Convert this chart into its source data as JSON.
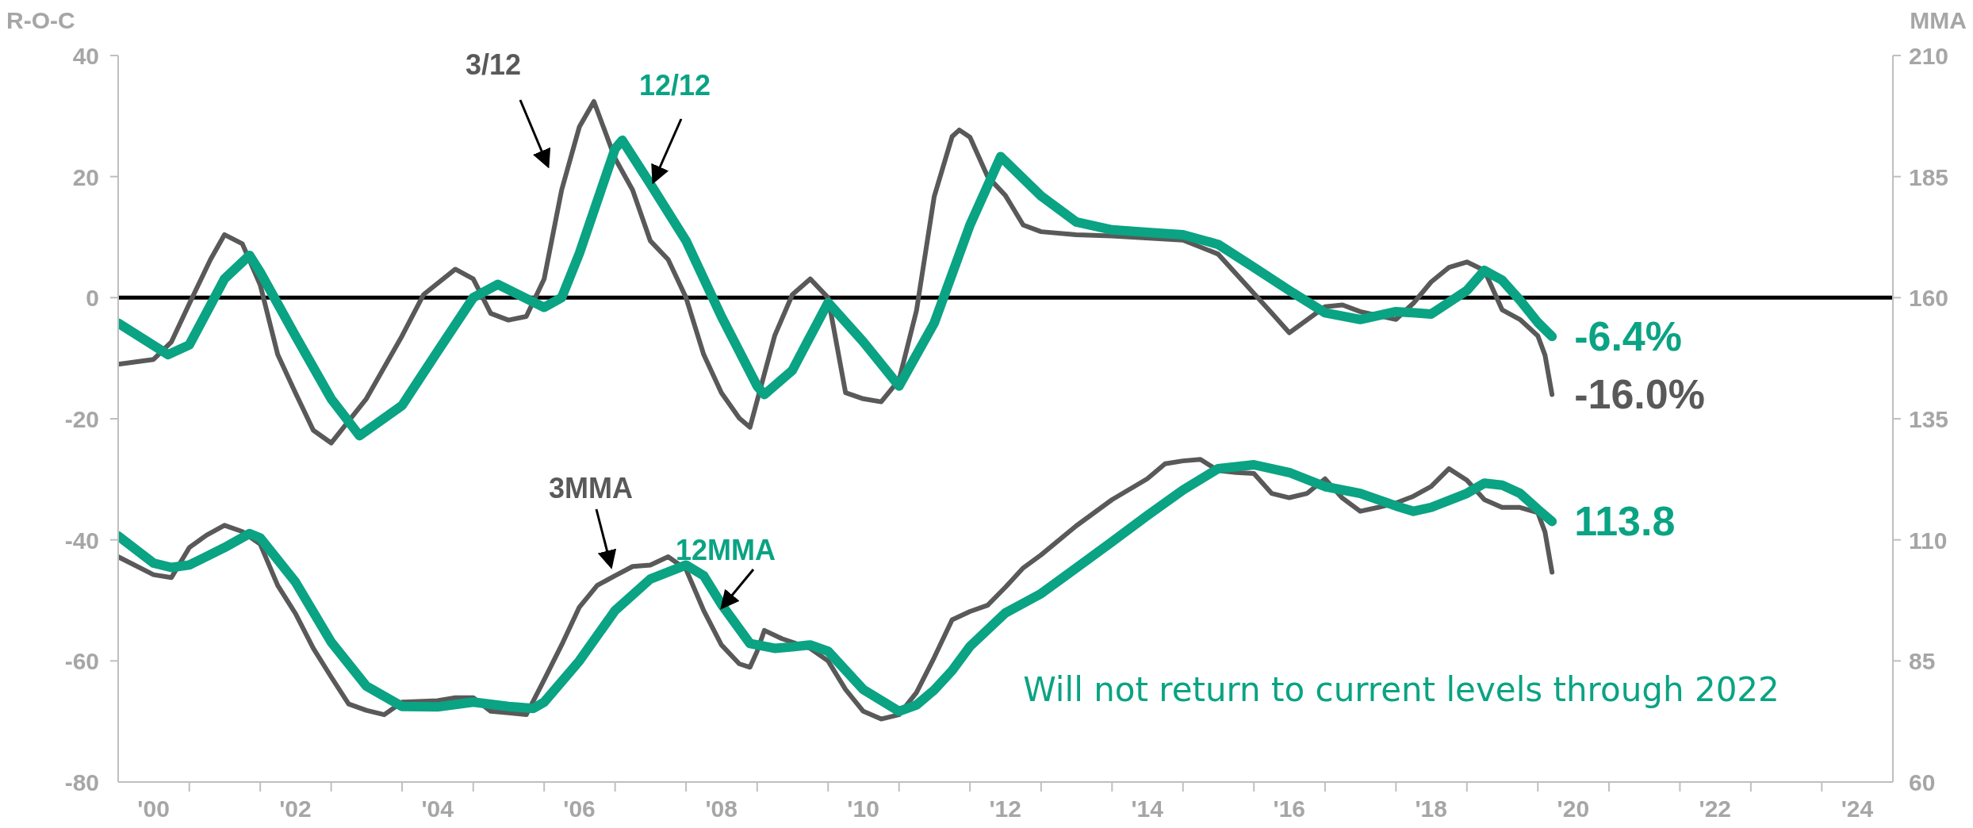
{
  "chart_data": {
    "type": "line",
    "ylabel": "R-O-C",
    "y2label": "MMA",
    "xlim": [
      "2000-01-01",
      "2025-01-01"
    ],
    "xticks": [
      {
        "value": "2000-07-01",
        "label": "'00"
      },
      {
        "value": "2001-01-01",
        "label": null
      },
      {
        "value": "2002-01-01",
        "label": null
      },
      {
        "value": "2002-07-01",
        "label": "'02"
      },
      {
        "value": "2003-01-01",
        "label": null
      },
      {
        "value": "2004-01-01",
        "label": null
      },
      {
        "value": "2004-07-01",
        "label": "'04"
      },
      {
        "value": "2005-01-01",
        "label": null
      },
      {
        "value": "2006-01-01",
        "label": null
      },
      {
        "value": "2006-07-01",
        "label": "'06"
      },
      {
        "value": "2007-01-01",
        "label": null
      },
      {
        "value": "2008-01-01",
        "label": null
      },
      {
        "value": "2008-07-01",
        "label": "'08"
      },
      {
        "value": "2009-01-01",
        "label": null
      },
      {
        "value": "2010-01-01",
        "label": null
      },
      {
        "value": "2010-07-01",
        "label": "'10"
      },
      {
        "value": "2011-01-01",
        "label": null
      },
      {
        "value": "2012-01-01",
        "label": null
      },
      {
        "value": "2012-07-01",
        "label": "'12"
      },
      {
        "value": "2013-01-01",
        "label": null
      },
      {
        "value": "2014-01-01",
        "label": null
      },
      {
        "value": "2014-07-01",
        "label": "'14"
      },
      {
        "value": "2015-01-01",
        "label": null
      },
      {
        "value": "2016-01-01",
        "label": null
      },
      {
        "value": "2016-07-01",
        "label": "'16"
      },
      {
        "value": "2017-01-01",
        "label": null
      },
      {
        "value": "2018-01-01",
        "label": null
      },
      {
        "value": "2018-07-01",
        "label": "'18"
      },
      {
        "value": "2019-01-01",
        "label": null
      },
      {
        "value": "2020-01-01",
        "label": null
      },
      {
        "value": "2020-07-01",
        "label": "'20"
      },
      {
        "value": "2021-01-01",
        "label": null
      },
      {
        "value": "2022-01-01",
        "label": null
      },
      {
        "value": "2022-07-01",
        "label": "'22"
      },
      {
        "value": "2023-01-01",
        "label": null
      },
      {
        "value": "2024-01-01",
        "label": null
      },
      {
        "value": "2024-07-01",
        "label": "'24"
      }
    ],
    "ylim": [
      -80,
      40
    ],
    "yticks": [
      -80,
      -60,
      -40,
      -20,
      0,
      20,
      40
    ],
    "y2lim": [
      60,
      210
    ],
    "y2ticks": [
      60,
      85,
      110,
      135,
      160,
      185,
      210
    ],
    "ref_lines": [
      {
        "axis": "y",
        "value": 0,
        "color": "#000000"
      }
    ],
    "annotations": [
      "Will not return to current levels through 2022"
    ],
    "series": [
      {
        "name": "3/12",
        "color": "#595959",
        "x": [
          "2000-01-01",
          "2000-07-01",
          "2000-10-01",
          "2001-01-01",
          "2001-04-20",
          "2001-07-01",
          "2001-10-01",
          "2002-01-01",
          "2002-04-01",
          "2002-07-01",
          "2002-10-01",
          "2003-01-01",
          "2003-07-01",
          "2004-01-01",
          "2004-04-20",
          "2004-10-01",
          "2005-01-01",
          "2005-04-01",
          "2005-07-01",
          "2005-10-01",
          "2006-01-01",
          "2006-04-01",
          "2006-07-01",
          "2006-09-14",
          "2007-01-01",
          "2007-04-01",
          "2007-07-01",
          "2007-10-01",
          "2008-01-01",
          "2008-04-01",
          "2008-07-01",
          "2008-10-01",
          "2008-11-25",
          "2009-04-01",
          "2009-07-01",
          "2009-10-01",
          "2010-01-01",
          "2010-04-01",
          "2010-07-01",
          "2010-10-01",
          "2011-01-01",
          "2011-04-01",
          "2011-07-01",
          "2011-10-01",
          "2011-11-07",
          "2012-01-01",
          "2012-04-01",
          "2012-07-01",
          "2012-10-01",
          "2013-01-01",
          "2013-07-01",
          "2014-01-01",
          "2015-01-01",
          "2015-07-01",
          "2016-01-01",
          "2016-04-01",
          "2016-07-01",
          "2017-01-01",
          "2017-04-01",
          "2017-07-01",
          "2018-01-01",
          "2018-04-01",
          "2018-07-01",
          "2018-10-01",
          "2019-01-01",
          "2019-04-01",
          "2019-07-01",
          "2019-10-01",
          "2020-01-01",
          "2020-02-07",
          "2020-03-14"
        ],
        "values": [
          -11,
          -10.2,
          -7.3,
          -1,
          6.3,
          10.4,
          8.9,
          2.1,
          -9.4,
          -15.7,
          -21.9,
          -24,
          -16.7,
          -6.3,
          0.5,
          4.7,
          3.1,
          -2.6,
          -3.7,
          -3.1,
          3.1,
          17.8,
          28.2,
          32.4,
          23,
          17.8,
          9.4,
          6.3,
          0,
          -9.4,
          -15.7,
          -19.9,
          -21.4,
          -6.3,
          0.5,
          3.1,
          0,
          -15.7,
          -16.7,
          -17.2,
          -13.6,
          -2.1,
          16.7,
          26.6,
          27.7,
          26.5,
          20,
          16.9,
          12,
          10.9,
          10.4,
          10.2,
          9.5,
          7.2,
          0.7,
          -2.5,
          -5.8,
          -1.5,
          -1.2,
          -2.3,
          -3.6,
          -0.9,
          2.6,
          5,
          5.9,
          4.5,
          -2,
          -3.6,
          -6.3,
          -9.5,
          -16
        ],
        "value_labels": [
          null,
          null,
          null,
          null,
          null,
          null,
          null,
          null,
          null,
          null,
          null,
          null,
          null,
          null,
          null,
          null,
          null,
          null,
          null,
          null,
          null,
          null,
          null,
          null,
          null,
          null,
          null,
          null,
          null,
          null,
          null,
          null,
          null,
          null,
          null,
          null,
          null,
          null,
          null,
          null,
          null,
          null,
          null,
          null,
          null,
          null,
          null,
          null,
          null,
          null,
          null,
          null,
          null,
          null,
          null,
          null,
          null,
          null,
          null,
          null,
          null,
          null,
          null,
          null,
          null,
          null,
          null,
          null,
          null,
          null,
          "-16.0%"
        ]
      },
      {
        "name": "12/12",
        "color": "#0aa383",
        "x": [
          "2000-01-01",
          "2000-09-14",
          "2001-01-01",
          "2001-07-01",
          "2001-11-07",
          "2002-01-01",
          "2002-07-01",
          "2003-01-01",
          "2003-05-27",
          "2004-01-01",
          "2004-07-01",
          "2005-01-01",
          "2005-05-08",
          "2006-01-01",
          "2006-04-01",
          "2006-07-01",
          "2007-01-01",
          "2007-02-07",
          "2007-07-01",
          "2008-01-01",
          "2008-07-01",
          "2009-01-01",
          "2009-02-07",
          "2009-07-01",
          "2010-01-01",
          "2010-07-01",
          "2011-01-01",
          "2011-07-01",
          "2012-01-01",
          "2012-06-07",
          "2013-01-01",
          "2013-07-01",
          "2014-01-01",
          "2014-07-01",
          "2015-01-01",
          "2015-07-01",
          "2016-01-01",
          "2016-07-01",
          "2017-01-01",
          "2017-07-01",
          "2018-01-01",
          "2018-07-01",
          "2019-01-01",
          "2019-04-01",
          "2019-07-01",
          "2019-10-01",
          "2020-01-01",
          "2020-03-14"
        ],
        "values": [
          -4.2,
          -9.4,
          -7.8,
          3.1,
          7,
          4.2,
          -6.3,
          -16.7,
          -22.8,
          -17.8,
          -8.9,
          0,
          2.2,
          -1.6,
          0,
          7.3,
          24.6,
          26,
          18.8,
          9.4,
          -3.1,
          -14.6,
          -16,
          -12,
          -0.8,
          -7.3,
          -14.6,
          -4.2,
          12,
          23.3,
          16.8,
          12.5,
          11.2,
          10.8,
          10.4,
          8.8,
          5,
          1.2,
          -2.5,
          -3.6,
          -2.3,
          -2.7,
          1.2,
          4.5,
          2.9,
          -0.4,
          -4.1,
          -6.4
        ],
        "value_labels": [
          null,
          null,
          null,
          null,
          null,
          null,
          null,
          null,
          null,
          null,
          null,
          null,
          null,
          null,
          null,
          null,
          null,
          null,
          null,
          null,
          null,
          null,
          null,
          null,
          null,
          null,
          null,
          null,
          null,
          null,
          null,
          null,
          null,
          null,
          null,
          null,
          null,
          null,
          null,
          null,
          null,
          null,
          null,
          null,
          null,
          null,
          null,
          "-6.4%"
        ]
      },
      {
        "name": "3MMA",
        "color": "#595959",
        "axis": "y2",
        "x": [
          "2000-01-01",
          "2000-07-01",
          "2000-10-01",
          "2001-01-01",
          "2001-04-01",
          "2001-07-01",
          "2001-10-01",
          "2002-01-01",
          "2002-04-01",
          "2002-07-01",
          "2002-10-01",
          "2003-01-01",
          "2003-04-01",
          "2003-07-01",
          "2003-10-01",
          "2004-01-01",
          "2004-07-01",
          "2004-10-01",
          "2005-01-01",
          "2005-04-01",
          "2005-07-01",
          "2005-10-01",
          "2006-01-01",
          "2006-04-01",
          "2006-07-01",
          "2006-10-01",
          "2007-01-01",
          "2007-04-01",
          "2007-07-01",
          "2007-10-01",
          "2008-01-01",
          "2008-04-01",
          "2008-07-01",
          "2008-10-01",
          "2008-11-25",
          "2009-01-01",
          "2009-02-07",
          "2009-05-08",
          "2009-10-01",
          "2010-01-01",
          "2010-04-01",
          "2010-07-01",
          "2010-10-01",
          "2011-01-01",
          "2011-04-01",
          "2011-07-01",
          "2011-10-01",
          "2012-01-01",
          "2012-04-01",
          "2012-07-01",
          "2012-10-01",
          "2013-01-01",
          "2013-07-01",
          "2014-01-01",
          "2014-07-01",
          "2014-10-01",
          "2015-01-01",
          "2015-04-01",
          "2015-07-01",
          "2015-10-01",
          "2016-01-01",
          "2016-04-01",
          "2016-07-01",
          "2016-10-01",
          "2017-01-01",
          "2017-04-01",
          "2017-07-01",
          "2017-10-01",
          "2018-01-01",
          "2018-04-01",
          "2018-07-01",
          "2018-10-01",
          "2019-01-01",
          "2019-04-01",
          "2019-07-01",
          "2019-10-01",
          "2020-01-01",
          "2020-02-07",
          "2020-03-14"
        ],
        "values": [
          106.5,
          102.8,
          102.2,
          108.4,
          111,
          113,
          111.7,
          109.1,
          100.6,
          94.8,
          87.6,
          81.7,
          76.1,
          74.8,
          73.9,
          76.5,
          76.8,
          77.4,
          77.4,
          74.6,
          74.3,
          73.9,
          81.1,
          88.3,
          96.1,
          100.6,
          102.6,
          104.5,
          104.8,
          106.5,
          103.9,
          95.4,
          88.3,
          84.4,
          83.7,
          87,
          91.3,
          89.6,
          87.6,
          85,
          79.1,
          74.6,
          73,
          73.9,
          78.5,
          85.7,
          93.5,
          95.2,
          96.5,
          100.2,
          104.2,
          106.9,
          112.9,
          118.3,
          122.6,
          125.7,
          126.3,
          126.6,
          124.3,
          123.9,
          123.7,
          119.6,
          118.7,
          119.6,
          122.6,
          118.6,
          115.9,
          116.7,
          117.6,
          119,
          121,
          124.7,
          122.3,
          118.3,
          116.7,
          116.7,
          115.6,
          111.6,
          103.3
        ]
      },
      {
        "name": "12MMA",
        "color": "#0aa383",
        "axis": "y2",
        "x": [
          "2000-01-01",
          "2000-07-01",
          "2000-10-01",
          "2001-01-01",
          "2001-07-01",
          "2001-11-07",
          "2002-01-01",
          "2002-07-01",
          "2003-01-01",
          "2003-07-01",
          "2004-01-01",
          "2004-07-01",
          "2005-01-01",
          "2005-07-01",
          "2005-11-07",
          "2006-01-01",
          "2006-07-01",
          "2007-01-01",
          "2007-07-01",
          "2008-01-01",
          "2008-04-01",
          "2008-07-01",
          "2008-11-25",
          "2009-04-01",
          "2009-07-01",
          "2009-10-01",
          "2010-01-01",
          "2010-07-01",
          "2011-01-01",
          "2011-04-01",
          "2011-07-01",
          "2011-10-01",
          "2012-01-01",
          "2012-07-01",
          "2013-01-01",
          "2013-07-01",
          "2014-01-01",
          "2014-07-01",
          "2015-01-01",
          "2015-07-01",
          "2016-01-01",
          "2016-07-01",
          "2017-01-01",
          "2017-07-01",
          "2018-01-01",
          "2018-04-01",
          "2018-07-01",
          "2019-01-01",
          "2019-04-01",
          "2019-07-01",
          "2019-10-01",
          "2020-01-01",
          "2020-03-14"
        ],
        "values": [
          110.8,
          105.2,
          104.3,
          104.8,
          108.4,
          111.3,
          110.4,
          101.3,
          88.9,
          79.8,
          75.6,
          75.5,
          76.5,
          75.6,
          75.2,
          76.5,
          85,
          95.4,
          101.9,
          104.8,
          102.6,
          96.7,
          88.6,
          87.6,
          87.9,
          88.3,
          87,
          79.1,
          74.6,
          75.9,
          79,
          83,
          88,
          94.9,
          98.9,
          104.2,
          109.6,
          115,
          120.3,
          124.7,
          125.5,
          123.9,
          121,
          119.6,
          117,
          115.9,
          116.7,
          119.6,
          121.7,
          121.3,
          119.6,
          116.3,
          113.8
        ],
        "value_labels": [
          null,
          null,
          null,
          null,
          null,
          null,
          null,
          null,
          null,
          null,
          null,
          null,
          null,
          null,
          null,
          null,
          null,
          null,
          null,
          null,
          null,
          null,
          null,
          null,
          null,
          null,
          null,
          null,
          null,
          null,
          null,
          null,
          null,
          null,
          null,
          null,
          null,
          null,
          null,
          null,
          null,
          null,
          null,
          null,
          null,
          null,
          null,
          null,
          null,
          null,
          null,
          null,
          "113.8"
        ]
      }
    ]
  }
}
